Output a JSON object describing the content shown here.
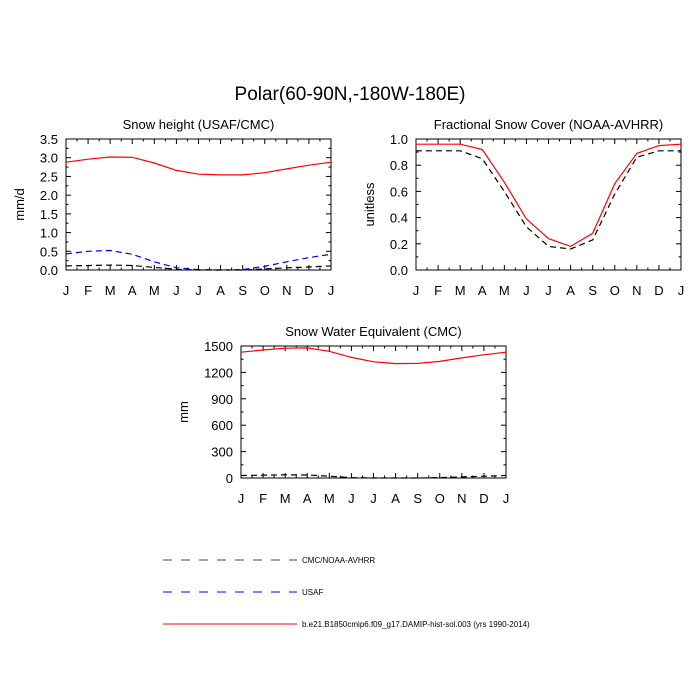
{
  "title": "Polar(60-90N,-180W-180E)",
  "legend": [
    {
      "label": "CMC/NOAA-AVHRR",
      "color": "#000000",
      "dash": "dashed"
    },
    {
      "label": "USAF",
      "color": "#0000ff",
      "dash": "dashed"
    },
    {
      "label": "b.e21.B1850cmip6.f09_g17.DAMIP-hist-sol.003 (yrs 1990-2014)",
      "color": "#ff0000",
      "dash": "solid"
    }
  ],
  "chart_data": [
    {
      "type": "line",
      "title": "Snow height (USAF/CMC)",
      "xlabel": "",
      "ylabel": "mm/d",
      "categories": [
        "J",
        "F",
        "M",
        "A",
        "M",
        "J",
        "J",
        "A",
        "S",
        "O",
        "N",
        "D",
        "J"
      ],
      "ylim": [
        0,
        3.5
      ],
      "yticks": [
        0.0,
        0.5,
        1.0,
        1.5,
        2.0,
        2.5,
        3.0,
        3.5
      ],
      "ytick_labels": [
        "0.0",
        "0.5",
        "1.0",
        "1.5",
        "2.0",
        "2.5",
        "3.0",
        "3.5"
      ],
      "series": [
        {
          "name": "b.e21.B1850cmip6.f09_g17.DAMIP-hist-sol.003 (yrs 1990-2014)",
          "color": "#ff0000",
          "dash": "solid",
          "values": [
            2.88,
            2.96,
            3.02,
            3.01,
            2.86,
            2.66,
            2.56,
            2.54,
            2.54,
            2.6,
            2.7,
            2.8,
            2.88
          ]
        },
        {
          "name": "USAF",
          "color": "#0000ff",
          "dash": "dashed",
          "values": [
            0.43,
            0.5,
            0.52,
            0.42,
            0.22,
            0.06,
            0.01,
            0.0,
            0.01,
            0.1,
            0.22,
            0.33,
            0.42
          ]
        },
        {
          "name": "CMC/NOAA-AVHRR",
          "color": "#000000",
          "dash": "dashed",
          "values": [
            0.11,
            0.12,
            0.13,
            0.12,
            0.07,
            0.02,
            0.0,
            0.0,
            0.0,
            0.03,
            0.06,
            0.08,
            0.11
          ]
        }
      ]
    },
    {
      "type": "line",
      "title": "Fractional Snow Cover (NOAA-AVHRR)",
      "xlabel": "",
      "ylabel": "unitless",
      "categories": [
        "J",
        "F",
        "M",
        "A",
        "M",
        "J",
        "J",
        "A",
        "S",
        "O",
        "N",
        "D",
        "J"
      ],
      "ylim": [
        0,
        1.0
      ],
      "yticks": [
        0.0,
        0.2,
        0.4,
        0.6,
        0.8,
        1.0
      ],
      "ytick_labels": [
        "0.0",
        "0.2",
        "0.4",
        "0.6",
        "0.8",
        "1.0"
      ],
      "series": [
        {
          "name": "b.e21.B1850cmip6.f09_g17.DAMIP-hist-sol.003 (yrs 1990-2014)",
          "color": "#ff0000",
          "dash": "solid",
          "values": [
            0.96,
            0.96,
            0.96,
            0.92,
            0.67,
            0.39,
            0.24,
            0.18,
            0.28,
            0.66,
            0.89,
            0.95,
            0.96
          ]
        },
        {
          "name": "CMC/NOAA-AVHRR",
          "color": "#000000",
          "dash": "dashed",
          "values": [
            0.91,
            0.91,
            0.91,
            0.85,
            0.6,
            0.33,
            0.18,
            0.16,
            0.23,
            0.58,
            0.86,
            0.91,
            0.91
          ]
        }
      ]
    },
    {
      "type": "line",
      "title": "Snow Water Equivalent (CMC)",
      "xlabel": "",
      "ylabel": "mm",
      "categories": [
        "J",
        "F",
        "M",
        "A",
        "M",
        "J",
        "J",
        "A",
        "S",
        "O",
        "N",
        "D",
        "J"
      ],
      "ylim": [
        0,
        1500
      ],
      "yticks": [
        0,
        300,
        600,
        900,
        1200,
        1500
      ],
      "ytick_labels": [
        "0",
        "300",
        "600",
        "900",
        "1200",
        "1500"
      ],
      "series": [
        {
          "name": "b.e21.B1850cmip6.f09_g17.DAMIP-hist-sol.003 (yrs 1990-2014)",
          "color": "#ff0000",
          "dash": "solid",
          "values": [
            1430,
            1455,
            1475,
            1478,
            1440,
            1370,
            1320,
            1300,
            1302,
            1325,
            1365,
            1400,
            1430
          ]
        },
        {
          "name": "CMC/NOAA-AVHRR",
          "color": "#000000",
          "dash": "dashed",
          "values": [
            28,
            32,
            36,
            34,
            20,
            4,
            0,
            0,
            0,
            5,
            12,
            20,
            28
          ]
        }
      ]
    }
  ]
}
